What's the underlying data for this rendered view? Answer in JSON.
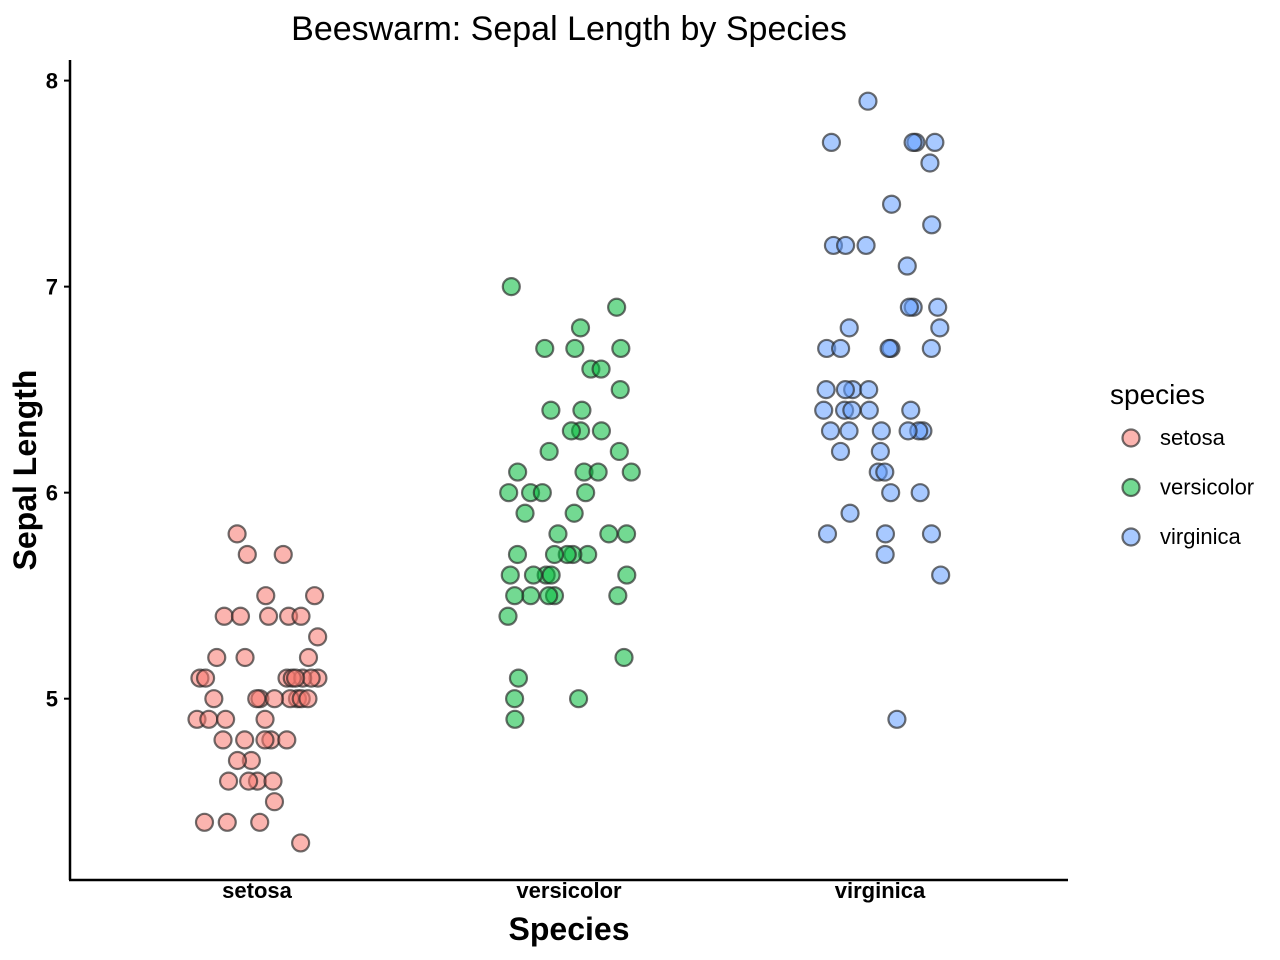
{
  "chart_data": {
    "type": "scatter",
    "subtype": "beeswarm",
    "title": "Beeswarm: Sepal Length by Species",
    "xlabel": "Species",
    "ylabel": "Sepal Length",
    "categories": [
      "setosa",
      "versicolor",
      "virginica"
    ],
    "yticks": [
      5,
      6,
      7,
      8
    ],
    "ylim": [
      4.12,
      8.1
    ],
    "grid": false,
    "legend": {
      "title": "species",
      "position": "right"
    },
    "series": [
      {
        "name": "setosa",
        "color": "#F8766D",
        "values": [
          5.1,
          4.9,
          4.7,
          4.6,
          5.0,
          5.4,
          4.6,
          5.0,
          4.4,
          4.9,
          5.4,
          4.8,
          4.8,
          4.3,
          5.8,
          5.7,
          5.4,
          5.1,
          5.7,
          5.1,
          5.4,
          5.1,
          4.6,
          5.1,
          4.8,
          5.0,
          5.0,
          5.2,
          5.2,
          4.7,
          4.8,
          5.4,
          5.2,
          5.5,
          4.9,
          5.0,
          5.5,
          4.9,
          4.4,
          5.1,
          5.0,
          4.5,
          4.4,
          5.0,
          5.1,
          4.8,
          5.1,
          4.6,
          5.3,
          5.0
        ]
      },
      {
        "name": "versicolor",
        "color": "#00BA38",
        "values": [
          7.0,
          6.4,
          6.9,
          5.5,
          6.5,
          5.7,
          6.3,
          4.9,
          6.6,
          5.2,
          5.0,
          5.9,
          6.0,
          6.1,
          5.6,
          6.7,
          5.6,
          5.8,
          6.2,
          5.6,
          5.9,
          6.1,
          6.3,
          6.1,
          6.4,
          6.6,
          6.8,
          6.7,
          6.0,
          5.7,
          5.5,
          5.5,
          5.8,
          6.0,
          5.4,
          6.0,
          6.7,
          6.3,
          5.6,
          5.5,
          5.5,
          6.1,
          5.8,
          5.0,
          5.6,
          5.7,
          5.7,
          6.2,
          5.1,
          5.7
        ]
      },
      {
        "name": "virginica",
        "color": "#619CFF",
        "values": [
          6.3,
          5.8,
          7.1,
          6.3,
          6.5,
          7.6,
          4.9,
          7.3,
          6.7,
          7.2,
          6.5,
          6.4,
          6.8,
          5.7,
          5.8,
          6.4,
          6.5,
          7.7,
          7.7,
          6.0,
          6.9,
          5.6,
          7.7,
          6.3,
          6.7,
          7.2,
          6.2,
          6.1,
          6.4,
          7.2,
          7.4,
          7.9,
          6.4,
          6.3,
          6.1,
          7.7,
          6.3,
          6.4,
          6.0,
          6.9,
          6.7,
          6.9,
          5.8,
          6.8,
          6.7,
          6.7,
          6.3,
          6.5,
          6.2,
          5.9
        ]
      }
    ]
  }
}
